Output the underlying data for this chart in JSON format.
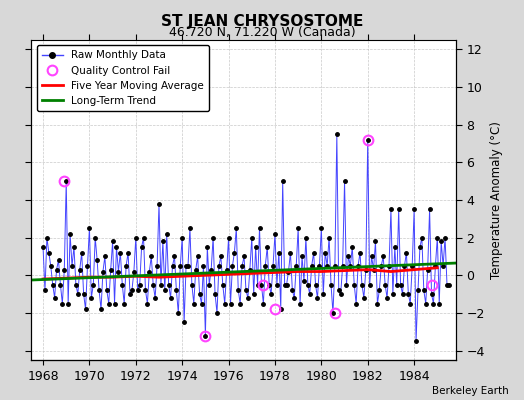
{
  "title": "ST JEAN CHRYSOSTOME",
  "subtitle": "46.720 N, 71.220 W (Canada)",
  "credit": "Berkeley Earth",
  "ylabel": "Temperature Anomaly (°C)",
  "xlim": [
    1967.5,
    1985.8
  ],
  "ylim": [
    -4.5,
    12.5
  ],
  "yticks": [
    -4,
    -2,
    0,
    2,
    4,
    6,
    8,
    10,
    12
  ],
  "xticks": [
    1968,
    1970,
    1972,
    1974,
    1976,
    1978,
    1980,
    1982,
    1984
  ],
  "bg_color": "#d8d8d8",
  "plot_bg_color": "#ffffff",
  "raw_line_color": "#4444ff",
  "raw_marker_color": "black",
  "qc_color": "#ff44ff",
  "moving_avg_color": "red",
  "trend_color": "green",
  "raw_data_x": [
    1968.0,
    1968.083,
    1968.167,
    1968.25,
    1968.333,
    1968.417,
    1968.5,
    1968.583,
    1968.667,
    1968.75,
    1968.833,
    1968.917,
    1969.0,
    1969.083,
    1969.167,
    1969.25,
    1969.333,
    1969.417,
    1969.5,
    1969.583,
    1969.667,
    1969.75,
    1969.833,
    1969.917,
    1970.0,
    1970.083,
    1970.167,
    1970.25,
    1970.333,
    1970.417,
    1970.5,
    1970.583,
    1970.667,
    1970.75,
    1970.833,
    1970.917,
    1971.0,
    1971.083,
    1971.167,
    1971.25,
    1971.333,
    1971.417,
    1971.5,
    1971.583,
    1971.667,
    1971.75,
    1971.833,
    1971.917,
    1972.0,
    1972.083,
    1972.167,
    1972.25,
    1972.333,
    1972.417,
    1972.5,
    1972.583,
    1972.667,
    1972.75,
    1972.833,
    1972.917,
    1973.0,
    1973.083,
    1973.167,
    1973.25,
    1973.333,
    1973.417,
    1973.5,
    1973.583,
    1973.667,
    1973.75,
    1973.833,
    1973.917,
    1974.0,
    1974.083,
    1974.167,
    1974.25,
    1974.333,
    1974.417,
    1974.5,
    1974.583,
    1974.667,
    1974.75,
    1974.833,
    1974.917,
    1975.0,
    1975.083,
    1975.167,
    1975.25,
    1975.333,
    1975.417,
    1975.5,
    1975.583,
    1975.667,
    1975.75,
    1975.833,
    1975.917,
    1976.0,
    1976.083,
    1976.167,
    1976.25,
    1976.333,
    1976.417,
    1976.5,
    1976.583,
    1976.667,
    1976.75,
    1976.833,
    1976.917,
    1977.0,
    1977.083,
    1977.167,
    1977.25,
    1977.333,
    1977.417,
    1977.5,
    1977.583,
    1977.667,
    1977.75,
    1977.833,
    1977.917,
    1978.0,
    1978.083,
    1978.167,
    1978.25,
    1978.333,
    1978.417,
    1978.5,
    1978.583,
    1978.667,
    1978.75,
    1978.833,
    1978.917,
    1979.0,
    1979.083,
    1979.167,
    1979.25,
    1979.333,
    1979.417,
    1979.5,
    1979.583,
    1979.667,
    1979.75,
    1979.833,
    1979.917,
    1980.0,
    1980.083,
    1980.167,
    1980.25,
    1980.333,
    1980.417,
    1980.5,
    1980.583,
    1980.667,
    1980.75,
    1980.833,
    1980.917,
    1981.0,
    1981.083,
    1981.167,
    1981.25,
    1981.333,
    1981.417,
    1981.5,
    1981.583,
    1981.667,
    1981.75,
    1981.833,
    1981.917,
    1982.0,
    1982.083,
    1982.167,
    1982.25,
    1982.333,
    1982.417,
    1982.5,
    1982.583,
    1982.667,
    1982.75,
    1982.833,
    1982.917,
    1983.0,
    1983.083,
    1983.167,
    1983.25,
    1983.333,
    1983.417,
    1983.5,
    1983.583,
    1983.667,
    1983.75,
    1983.833,
    1983.917,
    1984.0,
    1984.083,
    1984.167,
    1984.25,
    1984.333,
    1984.417,
    1984.5,
    1984.583,
    1984.667,
    1984.75,
    1984.833,
    1984.917,
    1985.0,
    1985.083,
    1985.167,
    1985.25,
    1985.333,
    1985.417,
    1985.5
  ],
  "raw_data_y": [
    1.5,
    -0.8,
    2.0,
    1.2,
    0.5,
    -0.5,
    -1.2,
    0.3,
    0.8,
    -0.5,
    -1.5,
    0.3,
    5.0,
    -1.5,
    2.2,
    0.5,
    1.5,
    -0.5,
    -1.0,
    0.3,
    1.2,
    -1.0,
    -1.8,
    0.5,
    2.5,
    -1.2,
    -0.5,
    2.0,
    0.8,
    -0.8,
    -1.8,
    0.2,
    1.0,
    -0.8,
    -1.5,
    0.3,
    1.8,
    -1.5,
    1.5,
    0.2,
    1.2,
    -0.5,
    -1.5,
    0.5,
    1.2,
    -1.0,
    -0.8,
    0.2,
    2.0,
    -0.8,
    -0.5,
    1.5,
    2.0,
    -0.8,
    -1.5,
    0.2,
    1.0,
    -0.5,
    -1.2,
    0.5,
    3.8,
    -0.5,
    1.8,
    -0.8,
    2.2,
    -0.5,
    -1.2,
    0.5,
    1.0,
    -0.8,
    -2.0,
    0.5,
    2.0,
    -2.5,
    0.5,
    0.5,
    2.5,
    -0.5,
    -1.5,
    0.3,
    1.0,
    -1.0,
    -1.5,
    0.5,
    -3.2,
    1.5,
    -0.5,
    0.3,
    2.0,
    -1.0,
    -2.0,
    0.5,
    1.0,
    -0.5,
    -1.5,
    0.3,
    2.0,
    -1.5,
    0.5,
    1.2,
    2.5,
    -0.8,
    -1.5,
    0.5,
    1.0,
    -0.8,
    -1.2,
    0.3,
    2.0,
    -1.0,
    1.5,
    -0.5,
    2.5,
    -0.5,
    -1.5,
    0.5,
    1.5,
    -0.5,
    -1.0,
    0.5,
    2.2,
    -0.5,
    1.2,
    -1.8,
    5.0,
    -0.5,
    -0.5,
    0.2,
    1.2,
    -0.8,
    -1.2,
    0.5,
    2.5,
    -1.5,
    1.0,
    -0.3,
    2.0,
    -0.5,
    -1.0,
    0.5,
    1.2,
    -0.5,
    -1.2,
    0.5,
    2.5,
    -1.0,
    1.2,
    0.5,
    2.0,
    -0.5,
    -2.0,
    0.5,
    7.5,
    -0.8,
    -1.0,
    0.5,
    5.0,
    -0.5,
    1.0,
    0.5,
    1.5,
    -0.5,
    -1.5,
    0.5,
    1.2,
    -0.5,
    -1.2,
    0.3,
    7.2,
    -0.5,
    1.0,
    0.3,
    1.8,
    -1.5,
    -0.8,
    0.5,
    1.0,
    -0.5,
    -1.2,
    0.5,
    3.5,
    -1.0,
    1.5,
    -0.5,
    3.5,
    -0.5,
    -1.0,
    0.5,
    1.2,
    -1.0,
    -1.5,
    0.5,
    3.5,
    -3.5,
    -0.8,
    1.5,
    2.0,
    -0.8,
    -1.5,
    0.3,
    3.5,
    -1.0,
    -1.5,
    0.5,
    2.0,
    -1.5,
    1.8,
    0.5,
    2.0,
    -0.5,
    -0.5
  ],
  "qc_fail_x": [
    1968.917,
    1975.0,
    1977.5,
    1978.0,
    1980.583,
    1982.0,
    1984.75
  ],
  "qc_fail_y": [
    5.0,
    -3.2,
    -0.5,
    -1.8,
    -2.0,
    7.2,
    -0.5
  ],
  "moving_avg_x": [
    1968.0,
    1969.0,
    1970.0,
    1971.0,
    1972.0,
    1973.0,
    1974.0,
    1975.0,
    1976.0,
    1977.0,
    1978.0,
    1979.0,
    1980.0,
    1981.0,
    1982.0,
    1983.0,
    1984.0,
    1985.0
  ],
  "moving_avg_y": [
    -0.2,
    -0.15,
    -0.1,
    -0.1,
    -0.05,
    -0.1,
    -0.05,
    0.0,
    0.05,
    0.1,
    0.15,
    0.2,
    0.2,
    0.25,
    0.3,
    0.2,
    0.3,
    0.4
  ],
  "trend_x": [
    1967.5,
    1985.8
  ],
  "trend_y": [
    -0.25,
    0.65
  ]
}
